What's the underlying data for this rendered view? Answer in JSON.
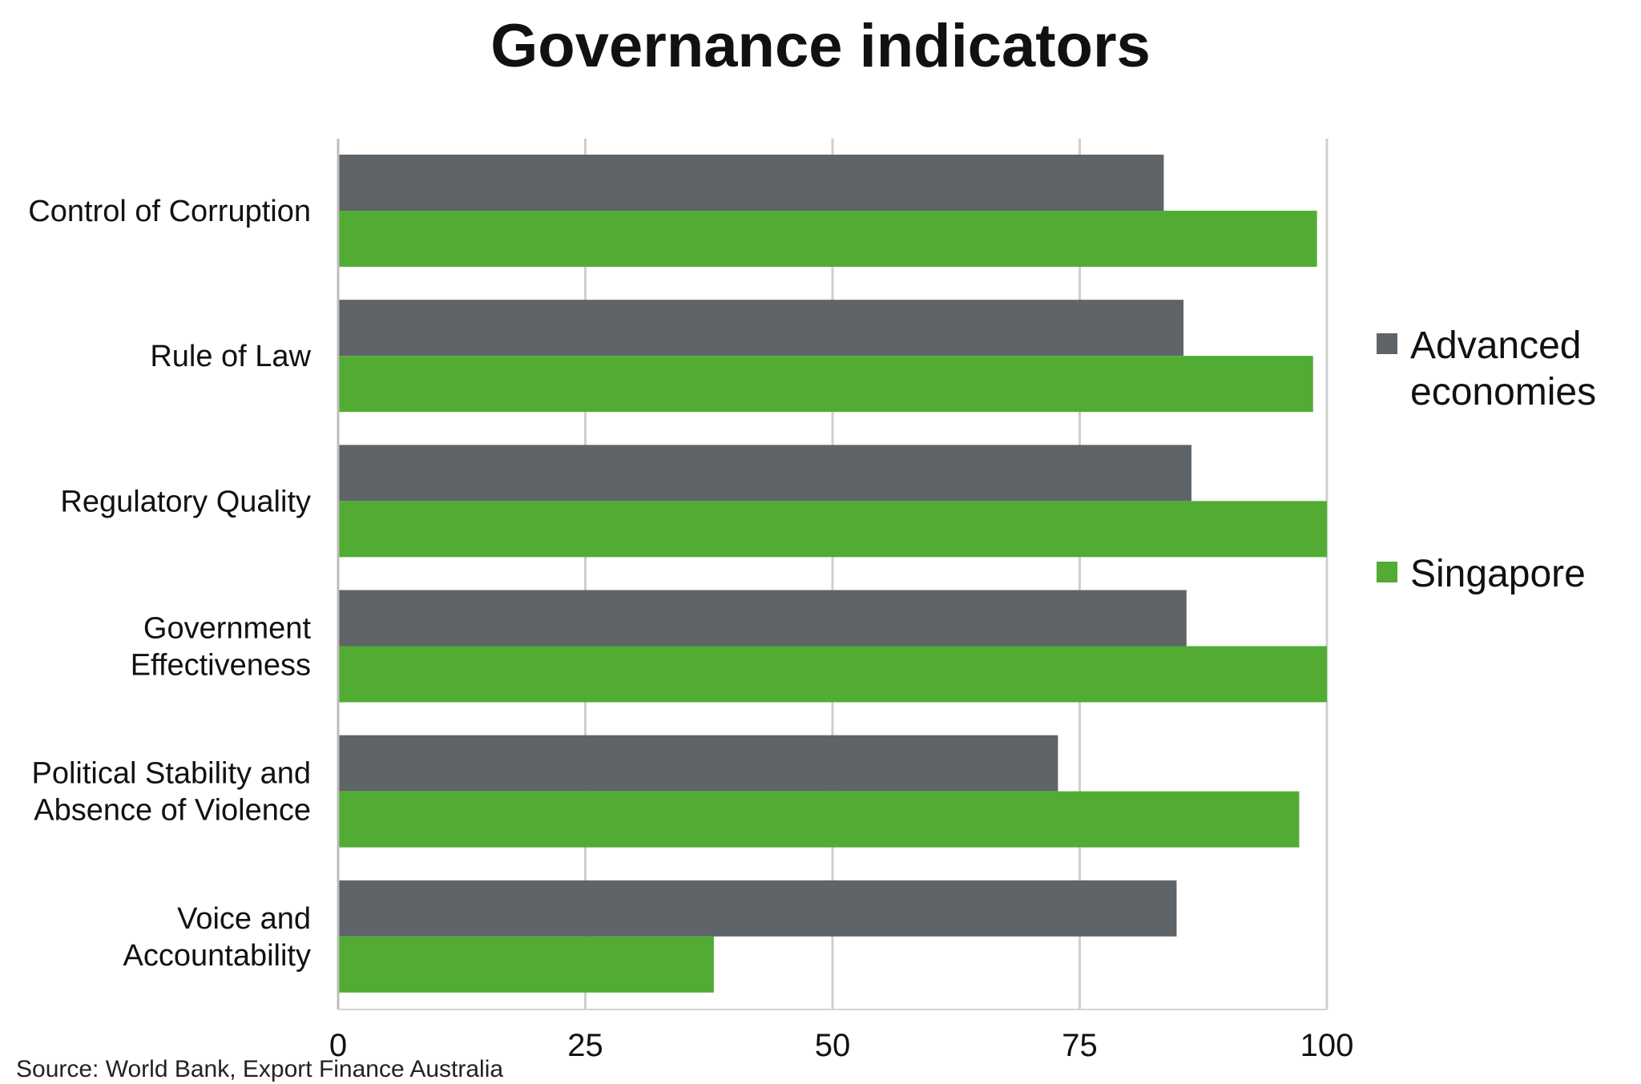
{
  "chart_data": {
    "type": "bar",
    "orientation": "horizontal",
    "title": "Governance indicators",
    "categories": [
      "Control of Corruption",
      "Rule of Law",
      "Regulatory Quality",
      "Government Effectiveness",
      "Political Stability and Absence of Violence",
      "Voice and Accountability"
    ],
    "category_lines": [
      [
        "Control of Corruption"
      ],
      [
        "Rule of Law"
      ],
      [
        "Regulatory Quality"
      ],
      [
        "Government",
        "Effectiveness"
      ],
      [
        "Political Stability and",
        "Absence of Violence"
      ],
      [
        "Voice and",
        "Accountability"
      ]
    ],
    "series": [
      {
        "name": "Advanced economies",
        "name_lines": [
          "Advanced",
          "economies"
        ],
        "color": "#5f6468",
        "values": [
          83.5,
          85.5,
          86.3,
          85.8,
          72.8,
          84.8
        ]
      },
      {
        "name": "Singapore",
        "name_lines": [
          "Singapore"
        ],
        "color": "#52ac33",
        "values": [
          99.0,
          98.6,
          100,
          100,
          97.2,
          38.0
        ]
      }
    ],
    "xlim": [
      0,
      100
    ],
    "xticks": [
      0,
      25,
      50,
      75,
      100
    ],
    "grid": true,
    "legend_position": "right",
    "source": "Source: World Bank, Export Finance Australia"
  }
}
